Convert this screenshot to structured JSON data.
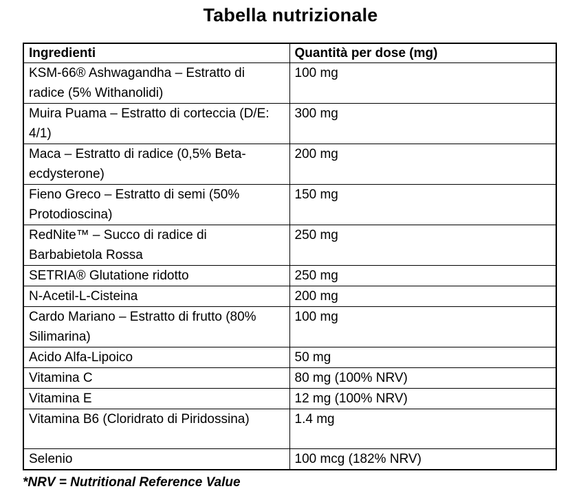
{
  "page": {
    "title": "Tabella nutrizionale",
    "footnote": "*NRV = Nutritional Reference Value"
  },
  "colors": {
    "background": "#ffffff",
    "text": "#000000",
    "border": "#000000"
  },
  "table": {
    "headers": [
      "Ingredienti",
      "Quantità per dose (mg)"
    ],
    "rows": [
      {
        "ingredient": "KSM-66® Ashwagandha – Estratto di radice (5% Withanolidi)",
        "quantity": "100 mg"
      },
      {
        "ingredient": "Muira Puama – Estratto di corteccia (D/E: 4/1)",
        "quantity": "300 mg"
      },
      {
        "ingredient": "Maca – Estratto di radice (0,5% Beta-ecdysterone)",
        "quantity": "200 mg"
      },
      {
        "ingredient": "Fieno Greco – Estratto di semi (50% Protodioscina)",
        "quantity": "150 mg"
      },
      {
        "ingredient": "RedNite™ – Succo di radice di Barbabietola Rossa",
        "quantity": "250 mg"
      },
      {
        "ingredient": "SETRIA® Glutatione ridotto",
        "quantity": "250 mg"
      },
      {
        "ingredient": "N-Acetil-L-Cisteina",
        "quantity": "200 mg"
      },
      {
        "ingredient": "Cardo Mariano – Estratto di frutto (80% Silimarina)",
        "quantity": "100 mg"
      },
      {
        "ingredient": "Acido Alfa-Lipoico",
        "quantity": "50 mg"
      },
      {
        "ingredient": "Vitamina C",
        "quantity": "80 mg (100% NRV)"
      },
      {
        "ingredient": "Vitamina E",
        "quantity": "12 mg (100% NRV)"
      },
      {
        "ingredient": "Vitamina B6 (Cloridrato di Piridossina)",
        "quantity": "1.4 mg"
      },
      {
        "ingredient": "Selenio",
        "quantity": "100 mcg (182% NRV)"
      }
    ]
  }
}
